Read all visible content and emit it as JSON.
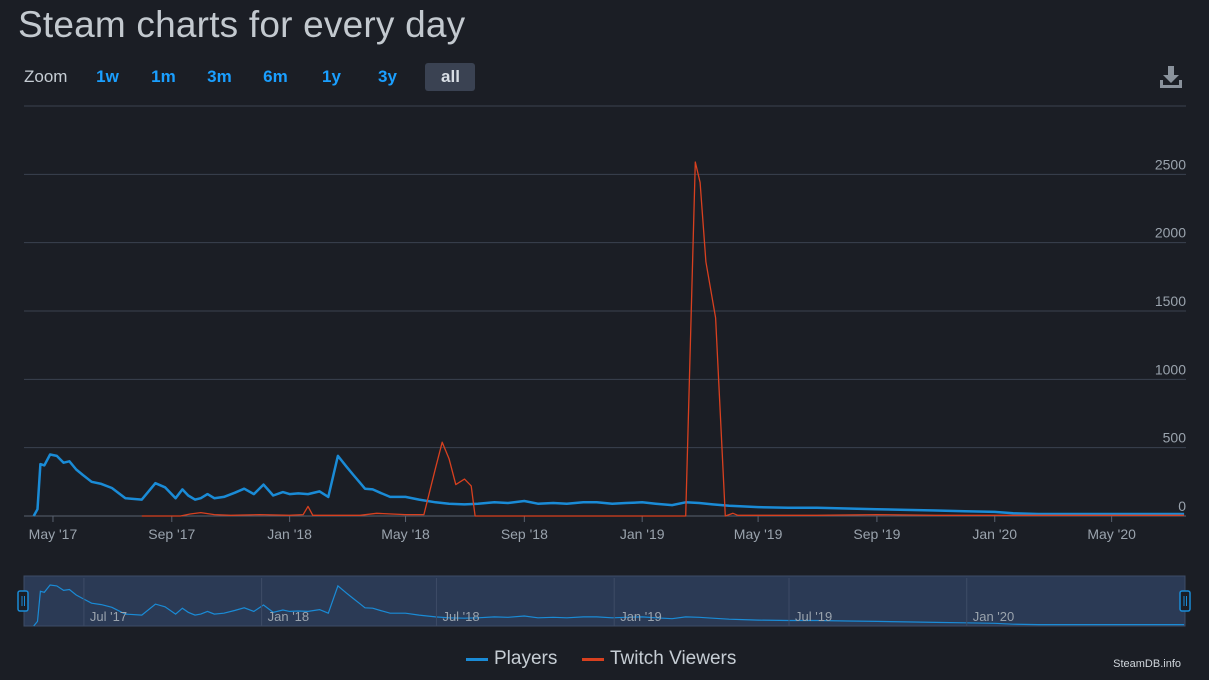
{
  "page": {
    "title": "Steam charts for every day",
    "zoom_label": "Zoom",
    "zoom_options": [
      "1w",
      "1m",
      "3m",
      "6m",
      "1y",
      "3y",
      "all"
    ],
    "zoom_selected": "all",
    "credit": "SteamDB.info"
  },
  "colors": {
    "players": "#1a8bd6",
    "twitch": "#d8401f",
    "grid": "#3b4250",
    "axis_text": "#9aa3ad",
    "navigator_fill": "#2b3a55"
  },
  "icons": {
    "download": "download-icon"
  },
  "chart_data": {
    "type": "line",
    "title": "",
    "xlabel": "",
    "ylabel": "",
    "xlim": [
      "2017-04-01",
      "2020-07-17"
    ],
    "ylim": [
      0,
      3000
    ],
    "y_ticks": [
      0,
      500,
      1000,
      1500,
      2000,
      2500
    ],
    "x_ticks": [
      "May '17",
      "Sep '17",
      "Jan '18",
      "May '18",
      "Sep '18",
      "Jan '19",
      "May '19",
      "Sep '19",
      "Jan '20",
      "May '20"
    ],
    "x_tick_dates": [
      "2017-05-01",
      "2017-09-01",
      "2018-01-01",
      "2018-05-01",
      "2018-09-01",
      "2019-01-01",
      "2019-05-01",
      "2019-09-01",
      "2020-01-01",
      "2020-05-01"
    ],
    "navigator_ticks": [
      "Jul '17",
      "Jan '18",
      "Jul '18",
      "Jan '19",
      "Jul '19",
      "Jan '20"
    ],
    "navigator_tick_dates": [
      "2017-07-01",
      "2018-01-01",
      "2018-07-01",
      "2019-01-01",
      "2019-07-01",
      "2020-01-01"
    ],
    "grid": true,
    "legend_position": "bottom-center",
    "series": [
      {
        "name": "Players",
        "x": [
          "2017-04-11",
          "2017-04-15",
          "2017-04-18",
          "2017-04-22",
          "2017-04-28",
          "2017-05-05",
          "2017-05-12",
          "2017-05-18",
          "2017-05-25",
          "2017-06-01",
          "2017-06-10",
          "2017-06-20",
          "2017-07-01",
          "2017-07-15",
          "2017-08-01",
          "2017-08-15",
          "2017-08-25",
          "2017-09-05",
          "2017-09-12",
          "2017-09-18",
          "2017-09-25",
          "2017-10-01",
          "2017-10-08",
          "2017-10-15",
          "2017-10-25",
          "2017-11-05",
          "2017-11-15",
          "2017-11-25",
          "2017-12-05",
          "2017-12-15",
          "2017-12-25",
          "2018-01-01",
          "2018-01-10",
          "2018-01-20",
          "2018-02-01",
          "2018-02-10",
          "2018-02-20",
          "2018-03-01",
          "2018-03-08",
          "2018-03-14",
          "2018-03-20",
          "2018-03-28",
          "2018-04-05",
          "2018-04-15",
          "2018-05-01",
          "2018-05-15",
          "2018-06-01",
          "2018-06-15",
          "2018-07-01",
          "2018-07-15",
          "2018-08-01",
          "2018-08-15",
          "2018-09-01",
          "2018-09-15",
          "2018-10-01",
          "2018-10-15",
          "2018-11-01",
          "2018-11-15",
          "2018-12-01",
          "2018-12-15",
          "2019-01-01",
          "2019-01-15",
          "2019-02-01",
          "2019-02-15",
          "2019-03-01",
          "2019-03-15",
          "2019-04-01",
          "2019-04-15",
          "2019-05-01",
          "2019-06-01",
          "2019-07-01",
          "2019-08-01",
          "2019-09-01",
          "2019-10-01",
          "2019-11-01",
          "2019-12-01",
          "2020-01-01",
          "2020-01-20",
          "2020-02-15",
          "2020-04-01",
          "2020-05-15",
          "2020-07-15"
        ],
        "values": [
          0,
          50,
          380,
          370,
          450,
          440,
          390,
          400,
          340,
          300,
          250,
          235,
          205,
          130,
          120,
          240,
          210,
          130,
          195,
          150,
          120,
          130,
          160,
          130,
          140,
          170,
          200,
          160,
          230,
          150,
          175,
          160,
          165,
          160,
          180,
          140,
          440,
          360,
          300,
          250,
          200,
          195,
          170,
          140,
          140,
          120,
          100,
          90,
          85,
          90,
          100,
          95,
          110,
          90,
          95,
          90,
          100,
          100,
          90,
          95,
          100,
          90,
          80,
          100,
          95,
          85,
          75,
          70,
          65,
          60,
          60,
          55,
          50,
          45,
          40,
          35,
          30,
          20,
          15,
          15,
          15,
          15
        ]
      },
      {
        "name": "Twitch Viewers",
        "x": [
          "2017-08-01",
          "2017-09-10",
          "2017-09-20",
          "2017-10-01",
          "2017-10-15",
          "2017-11-01",
          "2017-12-01",
          "2018-01-01",
          "2018-01-15",
          "2018-01-20",
          "2018-01-25",
          "2018-02-15",
          "2018-03-15",
          "2018-04-01",
          "2018-05-01",
          "2018-05-20",
          "2018-06-01",
          "2018-06-08",
          "2018-06-15",
          "2018-06-22",
          "2018-07-01",
          "2018-07-08",
          "2018-07-12",
          "2018-08-01",
          "2018-10-01",
          "2018-12-01",
          "2019-01-01",
          "2019-02-15",
          "2019-02-25",
          "2019-03-02",
          "2019-03-08",
          "2019-03-18",
          "2019-03-28",
          "2019-04-05",
          "2019-04-10",
          "2019-05-01",
          "2019-07-01",
          "2019-09-01",
          "2019-11-01",
          "2020-01-01",
          "2020-04-01",
          "2020-07-15"
        ],
        "values": [
          0,
          0,
          15,
          25,
          10,
          5,
          10,
          5,
          10,
          70,
          5,
          5,
          5,
          20,
          10,
          10,
          350,
          540,
          420,
          230,
          270,
          220,
          0,
          0,
          0,
          0,
          0,
          0,
          2590,
          2440,
          1860,
          1450,
          0,
          20,
          5,
          5,
          5,
          10,
          5,
          5,
          5,
          5
        ]
      }
    ]
  }
}
